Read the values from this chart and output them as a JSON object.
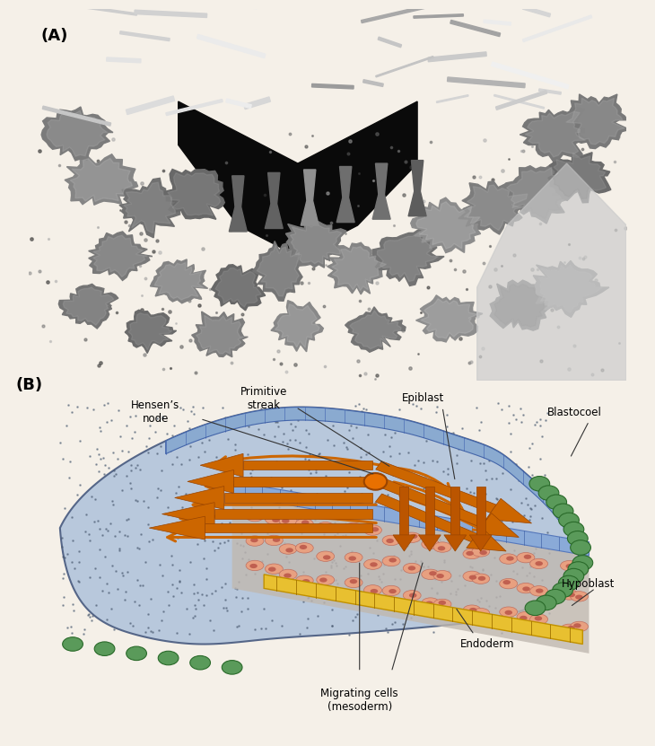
{
  "bg_color": "#f5f0e8",
  "panel_A_label": "(A)",
  "panel_B_label": "(B)",
  "labels": {
    "hensens_node": "Hensen’s\nnode",
    "primitive_streak": "Primitive\nstreak",
    "epiblast": "Epiblast",
    "blastocoel": "Blastocoel",
    "hypoblast": "Hypoblast",
    "endoderm": "Endoderm",
    "migrating_cells": "Migrating cells\n(mesoderm)"
  },
  "colors": {
    "epiblast_top": "#a8b8d8",
    "epiblast_blue": "#8fa8cc",
    "body_blue": "#b0c0d8",
    "body_blue_light": "#c8d8e8",
    "hypoblast_yellow": "#e8c840",
    "endoderm_pink": "#e8a888",
    "mesoderm_salmon": "#d89888",
    "green_cells": "#6a9e6a",
    "orange_arrows": "#cc6600",
    "arrow_dark": "#b05000",
    "dotted_blue": "#7890b0",
    "text_color": "#1a1a1a",
    "annotation_line": "#333333"
  }
}
